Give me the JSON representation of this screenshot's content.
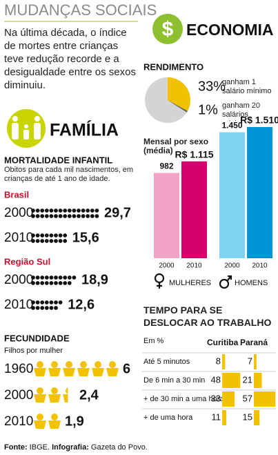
{
  "header": {
    "title": "MUDANÇAS SOCIAIS",
    "intro": "Na última década, o índice de mortes entre crianças teve redução recorde e a desigualdade entre os sexos diminuiu."
  },
  "familia": {
    "title": "FAMÍLIA"
  },
  "economia": {
    "icon": "$",
    "title": "ECONOMIA"
  },
  "chart_data": [
    {
      "type": "dots",
      "title": "MORTALIDADE INFANTIL",
      "subtitle": "Óbitos para cada mil nascimentos, em crianças de até 1 ano de idade.",
      "categories": [
        "2000",
        "2010"
      ],
      "series": [
        {
          "name": "Brasil",
          "color": "#111111",
          "values": [
            29.7,
            15.6
          ],
          "value_labels": [
            "29,7",
            "15,6"
          ]
        },
        {
          "name": "Região Sul",
          "color": "#111111",
          "values": [
            18.9,
            12.6
          ],
          "value_labels": [
            "18,9",
            "12,6"
          ]
        }
      ]
    },
    {
      "type": "pictogram",
      "title": "FECUNDIDADE",
      "subtitle": "Filhos por mulher",
      "color": "#f2c200",
      "categories": [
        "1960",
        "2000",
        "2010"
      ],
      "values": [
        6,
        2.4,
        1.9
      ],
      "value_labels": [
        "6",
        "2,4",
        "1,9"
      ]
    },
    {
      "type": "pie",
      "title": "RENDIMENTO",
      "categories": [
        "ganham 1 salário mínimo",
        "ganham 20 salários mínimos"
      ],
      "values": [
        33,
        1
      ],
      "value_labels": [
        "33%",
        "1%"
      ],
      "colors": [
        "#f2c200",
        "#555555"
      ],
      "rest_color": "#d4d4d4"
    },
    {
      "type": "bar",
      "title": "Mensal por sexo (média)",
      "categories": [
        "2000",
        "2010"
      ],
      "series": [
        {
          "name": "MULHERES",
          "colors": [
            "#f0a3c4",
            "#d6006f"
          ],
          "values": [
            982,
            1115
          ],
          "value_labels": [
            "982",
            "R$ 1.115"
          ]
        },
        {
          "name": "HOMENS",
          "colors": [
            "#7fd3f2",
            "#0096d6"
          ],
          "values": [
            1450,
            1510
          ],
          "value_labels": [
            "1.450",
            "R$ 1.510"
          ]
        }
      ]
    },
    {
      "type": "hbar",
      "title": "TEMPO PARA SE DESLOCAR AO TRABALHO",
      "unit": "Em %",
      "color": "#f2c200",
      "categories": [
        "Até 5 minutos",
        "De 6 min a 30 min",
        "+ de 30 min a uma hora",
        "+ de uma hora"
      ],
      "series": [
        {
          "name": "Curitiba",
          "values": [
            8,
            48,
            33,
            11
          ]
        },
        {
          "name": "Paraná",
          "values": [
            7,
            21,
            57,
            15
          ]
        }
      ]
    }
  ],
  "footer": {
    "source_label": "Fonte:",
    "source": "IBGE.",
    "credit_label": "Infografia:",
    "credit": "Gazeta do Povo."
  }
}
